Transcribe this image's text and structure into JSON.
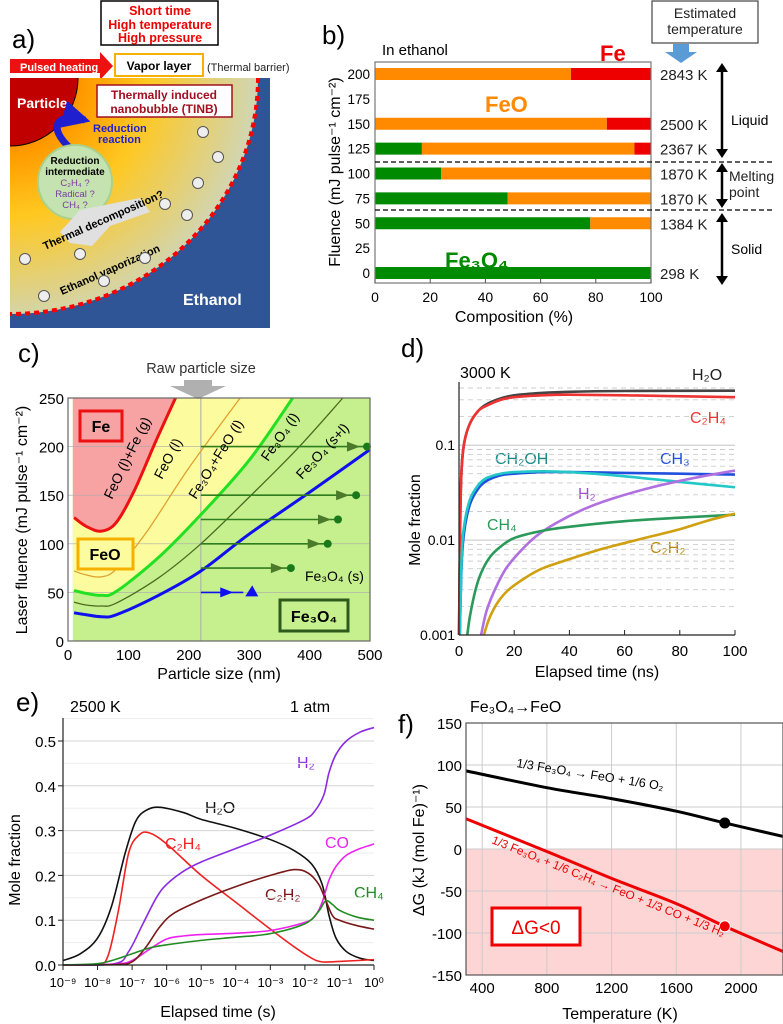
{
  "panel_a": {
    "label": "a)",
    "conditions": [
      "Short time",
      "High temperature",
      "High pressure"
    ],
    "pulsed_heating": "Pulsed heating",
    "vapor_layer": "Vapor layer",
    "thermal_barrier": "(Thermal barrier)",
    "particle": "Particle",
    "tinb": [
      "Thermally induced",
      "nanobubble (TINB)"
    ],
    "reduction_reaction": [
      "Reduction",
      "reaction"
    ],
    "intermediate": [
      "Reduction",
      "intermediate",
      "C₂H₄ ?",
      "Radical ?",
      "CH₄ ?"
    ],
    "thermal_decomposition": "Thermal decomposition?",
    "ethanol_vaporization": "Ethanol vaporization",
    "ethanol": "Ethanol",
    "colors": {
      "ethanol": "#2f5597",
      "particle": "#c00000",
      "bubble_edge": "#ff0000",
      "reduction_arrow": "#1f1fd0"
    }
  },
  "chart_data": [
    {
      "panel": "b)",
      "type": "bar",
      "orientation": "horizontal-stacked",
      "title": "In ethanol",
      "xlabel": "Composition (%)",
      "ylabel": "Fluence (mJ pulse⁻¹ cm⁻²)",
      "xlim": [
        0,
        100
      ],
      "ylim": [
        0,
        200
      ],
      "xticks": [
        0,
        20,
        40,
        60,
        80,
        100
      ],
      "yticks": [
        0,
        25,
        50,
        75,
        100,
        125,
        150,
        175,
        200
      ],
      "categories": [
        200,
        150,
        125,
        100,
        75,
        50,
        0
      ],
      "series": [
        {
          "name": "Fe₃O₄",
          "color": "#008a00",
          "values": [
            0,
            0,
            17,
            24,
            48,
            78,
            100
          ]
        },
        {
          "name": "FeO",
          "color": "#ff8a00",
          "values": [
            71,
            84,
            77,
            76,
            52,
            22,
            0
          ]
        },
        {
          "name": "Fe",
          "color": "#ee0000",
          "values": [
            29,
            16,
            6,
            0,
            0,
            0,
            0
          ]
        }
      ],
      "temperature_header": "Estimated temperature",
      "temperatures": [
        "2843 K",
        "2500 K",
        "2367 K",
        "1870 K",
        "1870 K",
        "1384 K",
        "298 K"
      ],
      "states": [
        "Liquid",
        "Melting point",
        "Solid"
      ]
    },
    {
      "panel": "c)",
      "type": "line",
      "xlabel": "Particle size (nm)",
      "ylabel": "Laser fluence (mJ pulse⁻¹ cm⁻²)",
      "xlim": [
        0,
        500
      ],
      "ylim": [
        0,
        250
      ],
      "xticks": [
        0,
        100,
        200,
        300,
        400,
        500
      ],
      "yticks": [
        0,
        50,
        100,
        150,
        200,
        250
      ],
      "annotation": "Raw particle size",
      "raw_particle_size_nm": 220,
      "region_colors": {
        "Fe": "#f7a3a3",
        "FeO": "#fcfc9e",
        "Fe3O4": "#c6f08e"
      },
      "region_labels": [
        "Fe",
        "FeO",
        "Fe₃O₄"
      ],
      "boundary_labels": [
        "FeO (l)+Fe (g)",
        "FeO (l)",
        "Fe₃O₄+FeO (l)",
        "Fe₃O₄ (l)",
        "Fe₃O₄ (s+l)",
        "Fe₃O₄ (s)"
      ],
      "curves": [
        {
          "id": "red",
          "color": "#ee1111",
          "points": [
            [
              10,
              127
            ],
            [
              30,
              118
            ],
            [
              55,
              113
            ],
            [
              80,
              122
            ],
            [
              110,
              155
            ],
            [
              145,
              205
            ],
            [
              178,
              250
            ]
          ]
        },
        {
          "id": "orange",
          "color": "#e0a030",
          "points": [
            [
              10,
              72
            ],
            [
              30,
              68
            ],
            [
              55,
              66
            ],
            [
              80,
              74
            ],
            [
              130,
              112
            ],
            [
              200,
              178
            ],
            [
              285,
              250
            ]
          ]
        },
        {
          "id": "bright-green",
          "color": "#22e022",
          "points": [
            [
              10,
              52
            ],
            [
              30,
              49
            ],
            [
              55,
              47
            ],
            [
              80,
              51
            ],
            [
              150,
              86
            ],
            [
              220,
              130
            ],
            [
              300,
              186
            ],
            [
              372,
              250
            ]
          ]
        },
        {
          "id": "olive",
          "color": "#4a6a20",
          "points": [
            [
              10,
              40
            ],
            [
              30,
              37
            ],
            [
              55,
              36
            ],
            [
              80,
              39
            ],
            [
              150,
              65
            ],
            [
              220,
              100
            ],
            [
              300,
              148
            ],
            [
              380,
              198
            ],
            [
              455,
              250
            ]
          ]
        },
        {
          "id": "blue",
          "color": "#1010ee",
          "points": [
            [
              10,
              29
            ],
            [
              30,
              27
            ],
            [
              55,
              25
            ],
            [
              80,
              27
            ],
            [
              150,
              47
            ],
            [
              220,
              72
            ],
            [
              300,
              110
            ],
            [
              400,
              153
            ],
            [
              500,
              197
            ]
          ]
        }
      ],
      "arrows": [
        {
          "fluence": 200,
          "end_size": 495
        },
        {
          "fluence": 150,
          "end_size": 477
        },
        {
          "fluence": 125,
          "end_size": 447
        },
        {
          "fluence": 100,
          "end_size": 430
        },
        {
          "fluence": 75,
          "end_size": 369
        }
      ],
      "blue_arrow": {
        "fluence": 50,
        "end_size": 310
      }
    },
    {
      "panel": "d)",
      "type": "line",
      "title": "3000 K",
      "xlabel": "Elapsed time (ns)",
      "ylabel": "Mole fraction",
      "xlim": [
        0,
        100
      ],
      "ylim": [
        0.001,
        0.4
      ],
      "yscale": "log",
      "xticks": [
        0,
        20,
        40,
        60,
        80,
        100
      ],
      "yticks": [
        0.001,
        0.01,
        0.1
      ],
      "ytick_labels": [
        "0.001",
        "0.01",
        "0.1"
      ],
      "series": [
        {
          "name": "H₂O",
          "color": "#444444",
          "x": [
            0,
            0.5,
            1,
            2,
            4,
            7,
            10,
            15,
            20,
            30,
            40,
            60,
            100
          ],
          "y": [
            0.001,
            0.02,
            0.06,
            0.11,
            0.17,
            0.23,
            0.27,
            0.31,
            0.335,
            0.355,
            0.365,
            0.372,
            0.375
          ]
        },
        {
          "name": "C₂H₄",
          "color": "#ee3333",
          "x": [
            0,
            0.5,
            1,
            2,
            4,
            7,
            10,
            15,
            20,
            30,
            40,
            60,
            100
          ],
          "y": [
            0.001,
            0.02,
            0.06,
            0.11,
            0.17,
            0.23,
            0.26,
            0.3,
            0.32,
            0.335,
            0.34,
            0.335,
            0.32
          ]
        },
        {
          "name": "CH₃",
          "color": "#2050dd",
          "x": [
            0.3,
            1,
            2,
            4,
            7,
            10,
            15,
            20,
            30,
            40,
            60,
            80,
            100
          ],
          "y": [
            0.001,
            0.006,
            0.013,
            0.024,
            0.035,
            0.042,
            0.048,
            0.05,
            0.052,
            0.052,
            0.051,
            0.05,
            0.049
          ]
        },
        {
          "name": "CH₂OH",
          "color": "#22c8c8",
          "x": [
            0.3,
            1,
            2,
            4,
            7,
            10,
            15,
            20,
            30,
            40,
            60,
            80,
            100
          ],
          "y": [
            0.001,
            0.007,
            0.015,
            0.027,
            0.038,
            0.045,
            0.05,
            0.052,
            0.053,
            0.052,
            0.047,
            0.041,
            0.036
          ]
        },
        {
          "name": "H₂",
          "color": "#b070e0",
          "x": [
            8,
            10,
            13,
            17,
            22,
            28,
            35,
            45,
            55,
            70,
            85,
            100
          ],
          "y": [
            0.001,
            0.0018,
            0.003,
            0.005,
            0.0075,
            0.011,
            0.015,
            0.021,
            0.027,
            0.036,
            0.045,
            0.054
          ]
        },
        {
          "name": "CH₄",
          "color": "#2a9a5a",
          "x": [
            3,
            4,
            6,
            8,
            11,
            15,
            20,
            30,
            40,
            60,
            80,
            100
          ],
          "y": [
            0.001,
            0.0016,
            0.003,
            0.0045,
            0.0065,
            0.0085,
            0.0105,
            0.0125,
            0.0138,
            0.0158,
            0.0172,
            0.0185
          ]
        },
        {
          "name": "C₂H₂",
          "color": "#d0a010",
          "x": [
            9,
            11,
            14,
            18,
            24,
            30,
            40,
            50,
            60,
            70,
            80,
            90,
            100
          ],
          "y": [
            0.001,
            0.0015,
            0.0022,
            0.003,
            0.004,
            0.005,
            0.0063,
            0.0078,
            0.0093,
            0.011,
            0.013,
            0.016,
            0.019
          ]
        }
      ]
    },
    {
      "panel": "e)",
      "type": "line",
      "title": "2500 K",
      "subtitle": "1 atm",
      "xlabel": "Elapsed time (s)",
      "ylabel": "Mole fraction",
      "xlim": [
        1e-09,
        1
      ],
      "xscale": "log",
      "ylim": [
        0,
        0.55
      ],
      "xticks": [
        -9,
        -8,
        -7,
        -6,
        -5,
        -4,
        -3,
        -2,
        -1,
        0
      ],
      "xtick_labels": [
        "10⁻⁹",
        "10⁻⁸",
        "10⁻⁷",
        "10⁻⁶",
        "10⁻⁵",
        "10⁻⁴",
        "10⁻³",
        "10⁻²",
        "10⁻¹",
        "10⁰"
      ],
      "yticks": [
        0,
        0.1,
        0.2,
        0.3,
        0.4,
        0.5
      ],
      "ytick_labels": [
        "0.0",
        "0.1",
        "0.2",
        "0.3",
        "0.4",
        "0.5"
      ],
      "series": [
        {
          "name": "H₂O",
          "color": "#111111",
          "log10_x": [
            -9,
            -8.5,
            -8,
            -7.6,
            -7.2,
            -6.9,
            -6.6,
            -6.2,
            -5.5,
            -5,
            -4,
            -3,
            -2.3,
            -1.8,
            -1.5,
            -1.3,
            -1.1,
            -0.8,
            -0.4,
            0
          ],
          "y": [
            0.01,
            0.025,
            0.06,
            0.13,
            0.25,
            0.32,
            0.345,
            0.352,
            0.34,
            0.325,
            0.305,
            0.28,
            0.255,
            0.225,
            0.18,
            0.11,
            0.06,
            0.03,
            0.015,
            0.01
          ]
        },
        {
          "name": "C₂H₄",
          "color": "#ee2222",
          "log10_x": [
            -9,
            -8,
            -7.7,
            -7.4,
            -7.1,
            -6.8,
            -6.5,
            -6,
            -5,
            -4,
            -3,
            -2.3,
            -1.8,
            -1.5,
            -1,
            0
          ],
          "y": [
            0,
            0.002,
            0.02,
            0.12,
            0.25,
            0.29,
            0.295,
            0.27,
            0.2,
            0.14,
            0.08,
            0.04,
            0.015,
            0.007,
            0.008,
            0.012
          ]
        },
        {
          "name": "H₂",
          "color": "#8a2be2",
          "log10_x": [
            -9,
            -7.5,
            -7.1,
            -6.7,
            -6.3,
            -6,
            -5.5,
            -5,
            -4,
            -3,
            -2,
            -1.7,
            -1.45,
            -1.3,
            -1.1,
            -0.8,
            -0.4,
            0
          ],
          "y": [
            0,
            0.003,
            0.03,
            0.09,
            0.15,
            0.18,
            0.21,
            0.23,
            0.26,
            0.29,
            0.325,
            0.345,
            0.38,
            0.43,
            0.47,
            0.5,
            0.52,
            0.53
          ]
        },
        {
          "name": "CO",
          "color": "#ee22ee",
          "log10_x": [
            -9,
            -7.5,
            -7,
            -6.5,
            -6,
            -5.5,
            -5,
            -4,
            -3,
            -2,
            -1.7,
            -1.5,
            -1.3,
            -1.1,
            -0.8,
            -0.4,
            0
          ],
          "y": [
            0,
            0.002,
            0.01,
            0.035,
            0.058,
            0.065,
            0.068,
            0.071,
            0.077,
            0.095,
            0.11,
            0.14,
            0.19,
            0.22,
            0.245,
            0.26,
            0.27
          ]
        },
        {
          "name": "C₂H₂",
          "color": "#7a1818",
          "log10_x": [
            -9,
            -7.5,
            -7,
            -6.6,
            -6.2,
            -5.8,
            -5,
            -4,
            -3,
            -2.3,
            -1.9,
            -1.6,
            -1.4,
            -1.2,
            -1,
            -0.5,
            0
          ],
          "y": [
            0,
            0.001,
            0.007,
            0.04,
            0.085,
            0.115,
            0.145,
            0.175,
            0.2,
            0.213,
            0.205,
            0.18,
            0.145,
            0.11,
            0.1,
            0.088,
            0.08
          ]
        },
        {
          "name": "CH₄",
          "color": "#228b22",
          "log10_x": [
            -9,
            -8,
            -7.5,
            -7,
            -6.5,
            -6,
            -5,
            -4,
            -3,
            -2,
            -1.6,
            -1.4,
            -1.2,
            -1,
            -0.5,
            0
          ],
          "y": [
            0,
            0.003,
            0.012,
            0.025,
            0.038,
            0.045,
            0.055,
            0.062,
            0.07,
            0.092,
            0.12,
            0.143,
            0.135,
            0.122,
            0.107,
            0.1
          ]
        }
      ]
    },
    {
      "panel": "f)",
      "type": "line",
      "title": "Fe₃O₄→FeO",
      "xlabel": "Temperature (K)",
      "ylabel": "ΔG (kJ (mol Fe)⁻¹)",
      "xlim": [
        300,
        2260
      ],
      "ylim": [
        -150,
        150
      ],
      "xticks": [
        400,
        800,
        1200,
        1600,
        2000
      ],
      "yticks": [
        -150,
        -100,
        -50,
        0,
        50,
        100,
        150
      ],
      "negative_region_color": "#fdd5d5",
      "negative_region_label": "ΔG<0",
      "series": [
        {
          "name": "1/3 Fe₃O₄ → FeO + 1/6 O₂",
          "color": "#000000",
          "x": [
            300,
            800,
            1200,
            1600,
            1900,
            2260
          ],
          "y": [
            93,
            73,
            60,
            45,
            31,
            15
          ],
          "marker": {
            "x": 1900,
            "y": 31
          }
        },
        {
          "name": "1/3 Fe₃O₄ + 1/6 C₂H₄ → FeO + 1/3 CO + 1/3 H₂",
          "color": "#ee0000",
          "x": [
            300,
            800,
            1200,
            1600,
            1900,
            2260
          ],
          "y": [
            36,
            -3,
            -35,
            -65,
            -92,
            -122
          ],
          "marker": {
            "x": 1900,
            "y": -92
          }
        }
      ]
    }
  ]
}
